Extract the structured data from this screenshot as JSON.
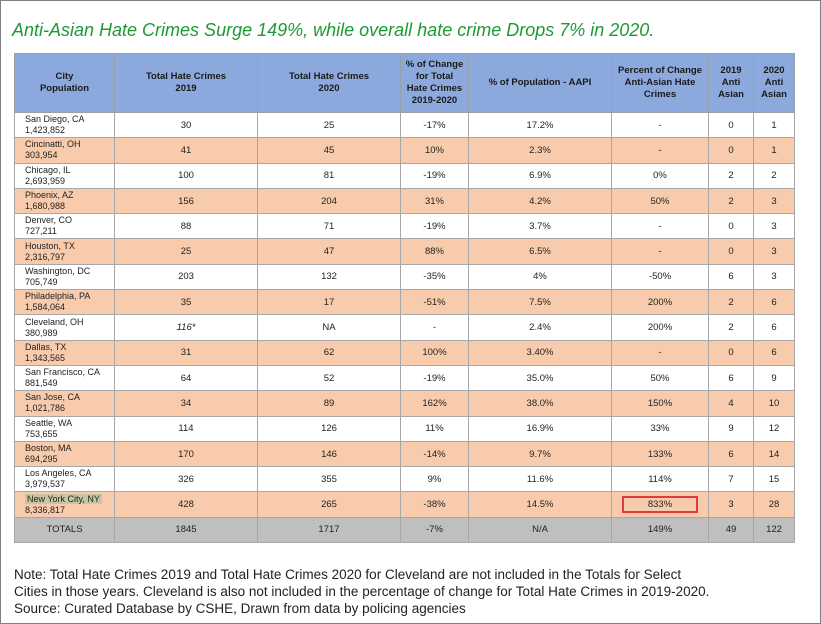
{
  "title": "Anti-Asian Hate Crimes Surge 149%, while overall hate crime Drops 7% in 2020.",
  "chart_data": {
    "type": "table",
    "headers": [
      "City\nPopulation",
      "Total Hate Crimes\n2019",
      "Total Hate Crimes\n2020",
      "% of Change\nfor Total\nHate Crimes\n2019-2020",
      "% of Population - AAPI",
      "Percent of Change\nAnti-Asian Hate\nCrimes",
      "2019\nAnti\nAsian",
      "2020\nAnti\nAsian"
    ],
    "rows": [
      {
        "city": "San Diego, CA",
        "population": "1,423,852",
        "hc2019": "30",
        "hc2020": "25",
        "change": "-17%",
        "aapi": "17.2%",
        "asian_change": "-",
        "asian2019": "0",
        "asian2020": "1"
      },
      {
        "city": "Cincinatti, OH",
        "population": "303,954",
        "hc2019": "41",
        "hc2020": "45",
        "change": "10%",
        "aapi": "2.3%",
        "asian_change": "-",
        "asian2019": "0",
        "asian2020": "1"
      },
      {
        "city": "Chicago, IL",
        "population": "2,693,959",
        "hc2019": "100",
        "hc2020": "81",
        "change": "-19%",
        "aapi": "6.9%",
        "asian_change": "0%",
        "asian2019": "2",
        "asian2020": "2"
      },
      {
        "city": "Phoenix, AZ",
        "population": "1,680,988",
        "hc2019": "156",
        "hc2020": "204",
        "change": "31%",
        "aapi": "4.2%",
        "asian_change": "50%",
        "asian2019": "2",
        "asian2020": "3"
      },
      {
        "city": "Denver, CO",
        "population": "727,211",
        "hc2019": "88",
        "hc2020": "71",
        "change": "-19%",
        "aapi": "3.7%",
        "asian_change": "-",
        "asian2019": "0",
        "asian2020": "3"
      },
      {
        "city": "Houston, TX",
        "population": "2,316,797",
        "hc2019": "25",
        "hc2020": "47",
        "change": "88%",
        "aapi": "6.5%",
        "asian_change": "-",
        "asian2019": "0",
        "asian2020": "3"
      },
      {
        "city": "Washington, DC",
        "population": "705,749",
        "hc2019": "203",
        "hc2020": "132",
        "change": "-35%",
        "aapi": "4%",
        "asian_change": "-50%",
        "asian2019": "6",
        "asian2020": "3"
      },
      {
        "city": "Philadelphia, PA",
        "population": "1,584,064",
        "hc2019": "35",
        "hc2020": "17",
        "change": "-51%",
        "aapi": "7.5%",
        "asian_change": "200%",
        "asian2019": "2",
        "asian2020": "6"
      },
      {
        "city": "Cleveland, OH",
        "population": "380,989",
        "hc2019": "116*",
        "hc2020": "NA",
        "change": "-",
        "aapi": "2.4%",
        "asian_change": "200%",
        "asian2019": "2",
        "asian2020": "6"
      },
      {
        "city": "Dallas, TX",
        "population": "1,343,565",
        "hc2019": "31",
        "hc2020": "62",
        "change": "100%",
        "aapi": "3.40%",
        "asian_change": "-",
        "asian2019": "0",
        "asian2020": "6"
      },
      {
        "city": "San Francisco, CA",
        "population": "881,549",
        "hc2019": "64",
        "hc2020": "52",
        "change": "-19%",
        "aapi": "35.0%",
        "asian_change": "50%",
        "asian2019": "6",
        "asian2020": "9"
      },
      {
        "city": "San Jose, CA",
        "population": "1,021,786",
        "hc2019": "34",
        "hc2020": "89",
        "change": "162%",
        "aapi": "38.0%",
        "asian_change": "150%",
        "asian2019": "4",
        "asian2020": "10"
      },
      {
        "city": "Seattle, WA",
        "population": "753,655",
        "hc2019": "114",
        "hc2020": "126",
        "change": "11%",
        "aapi": "16.9%",
        "asian_change": "33%",
        "asian2019": "9",
        "asian2020": "12"
      },
      {
        "city": "Boston, MA",
        "population": "694,295",
        "hc2019": "170",
        "hc2020": "146",
        "change": "-14%",
        "aapi": "9.7%",
        "asian_change": "133%",
        "asian2019": "6",
        "asian2020": "14"
      },
      {
        "city": "Los Angeles, CA",
        "population": "3,979,537",
        "hc2019": "326",
        "hc2020": "355",
        "change": "9%",
        "aapi": "11.6%",
        "asian_change": "114%",
        "asian2019": "7",
        "asian2020": "15"
      },
      {
        "city": "New York City, NY",
        "population": "8,336,817",
        "hc2019": "428",
        "hc2020": "265",
        "change": "-38%",
        "aapi": "14.5%",
        "asian_change": "833%",
        "asian2019": "3",
        "asian2020": "28"
      }
    ],
    "totals": {
      "label": "TOTALS",
      "hc2019": "1845",
      "hc2020": "1717",
      "change": "-7%",
      "aapi": "N/A",
      "asian_change": "149%",
      "asian2019": "49",
      "asian2020": "122"
    }
  },
  "note": {
    "line1": "Note: Total Hate Crimes 2019 and Total Hate Crimes 2020 for Cleveland are not included in the Totals for Select",
    "line2": "Cities in those years.  Cleveland is also not included in the percentage of change for Total Hate Crimes in 2019-2020.",
    "line3": "Source: Curated Database by CSHE, Drawn from data by policing agencies"
  },
  "colors": {
    "header": "#8ba9dd",
    "row_white": "#ffffff",
    "row_peach": "#f8cbad",
    "totals": "#bfbfbf",
    "title": "#1e9a35",
    "highlight_box": "#e03a3a",
    "nyc_highlight": "#c6c6a0"
  }
}
